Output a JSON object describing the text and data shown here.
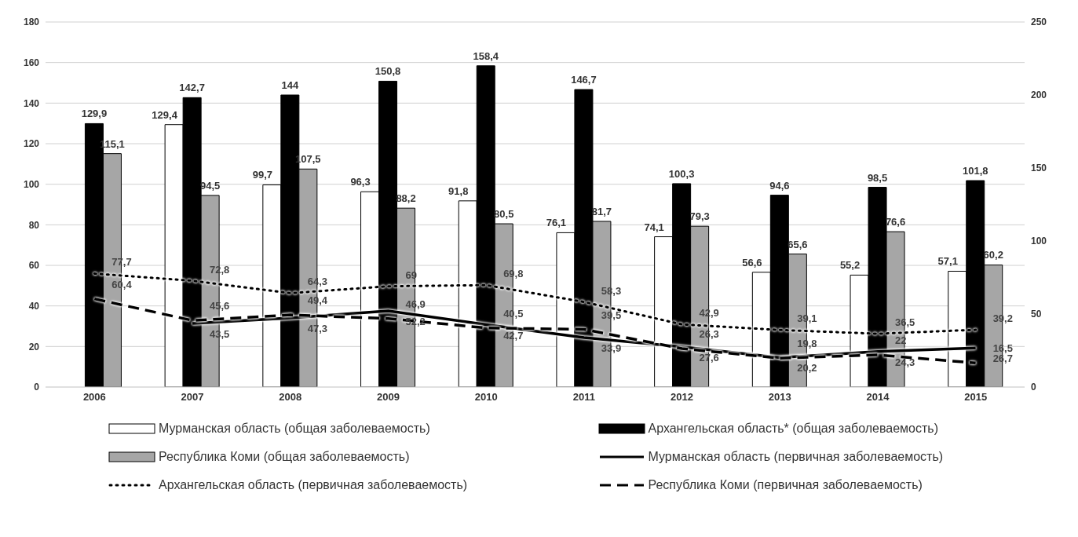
{
  "chart_data": {
    "type": "bar",
    "categories": [
      "2006",
      "2007",
      "2008",
      "2009",
      "2010",
      "2011",
      "2012",
      "2013",
      "2014",
      "2015"
    ],
    "series": [
      {
        "name": "Мурманская область (общая заболеваемость)",
        "color": "#ffffff",
        "values": [
          null,
          129.4,
          99.7,
          96.3,
          91.8,
          76.1,
          74.1,
          56.6,
          55.2,
          57.1
        ],
        "value_labels": [
          null,
          "129,4",
          "99,7",
          "96,3",
          "91,8",
          "76,1",
          "74,1",
          "56,6",
          "55,2",
          "57,1"
        ]
      },
      {
        "name": "Архангельская область* (общая заболеваемость)",
        "color": "#000000",
        "values": [
          129.9,
          142.7,
          144,
          150.8,
          158.4,
          146.7,
          100.3,
          94.6,
          98.5,
          101.8
        ],
        "value_labels": [
          "129,9",
          "142,7",
          "144",
          "150,8",
          "158,4",
          "146,7",
          "100,3",
          "94,6",
          "98,5",
          "101,8"
        ]
      },
      {
        "name": "Республика Коми (общая заболеваемость)",
        "color": "#a6a6a6",
        "values": [
          115.1,
          94.5,
          107.5,
          88.2,
          80.5,
          81.7,
          79.3,
          65.6,
          76.6,
          60.2
        ],
        "value_labels": [
          "115,1",
          "94,5",
          "107,5",
          "88,2",
          "80,5",
          "81,7",
          "79,3",
          "65,6",
          "76,6",
          "60,2"
        ]
      },
      {
        "name": "Мурманская область (первичная заболеваемость)",
        "type": "line",
        "axis": "y2",
        "line_style": "solid",
        "color": "#000000",
        "values": [
          null,
          43.5,
          47.3,
          52.2,
          42.7,
          33.9,
          27.6,
          20.2,
          24.3,
          26.7
        ],
        "value_labels": [
          null,
          "43,5",
          "47,3",
          "52,2",
          "42,7",
          "33,9",
          "27,6",
          "20,2",
          "24,3",
          "26,7"
        ]
      },
      {
        "name": "Архангельская область (первичная заболеваемость)",
        "type": "line",
        "axis": "y2",
        "line_style": "dotted",
        "color": "#000000",
        "values": [
          77.7,
          72.8,
          64.3,
          69,
          69.8,
          58.3,
          42.9,
          39.1,
          36.5,
          39.2
        ],
        "value_labels": [
          "77,7",
          "72,8",
          "64,3",
          "69",
          "69,8",
          "58,3",
          "42,9",
          "39,1",
          "36,5",
          "39,2"
        ]
      },
      {
        "name": "Республика Коми (первичная заболеваемость)",
        "type": "line",
        "axis": "y2",
        "line_style": "dashed",
        "color": "#000000",
        "values": [
          60.4,
          45.6,
          49.4,
          46.9,
          40.5,
          39.5,
          26.3,
          19.8,
          22,
          16.5
        ],
        "value_labels": [
          "60,4",
          "45,6",
          "49,4",
          "46,9",
          "40,5",
          "39,5",
          "26,3",
          "19,8",
          "22",
          "16,5"
        ]
      }
    ],
    "ylim": [
      0,
      180
    ],
    "yticks": [
      0,
      20,
      40,
      60,
      80,
      100,
      120,
      140,
      160,
      180
    ],
    "y2lim": [
      0,
      250
    ],
    "y2ticks": [
      0,
      50,
      100,
      150,
      200,
      250
    ],
    "grid": "y",
    "legend": "bottom",
    "marker": "none"
  }
}
